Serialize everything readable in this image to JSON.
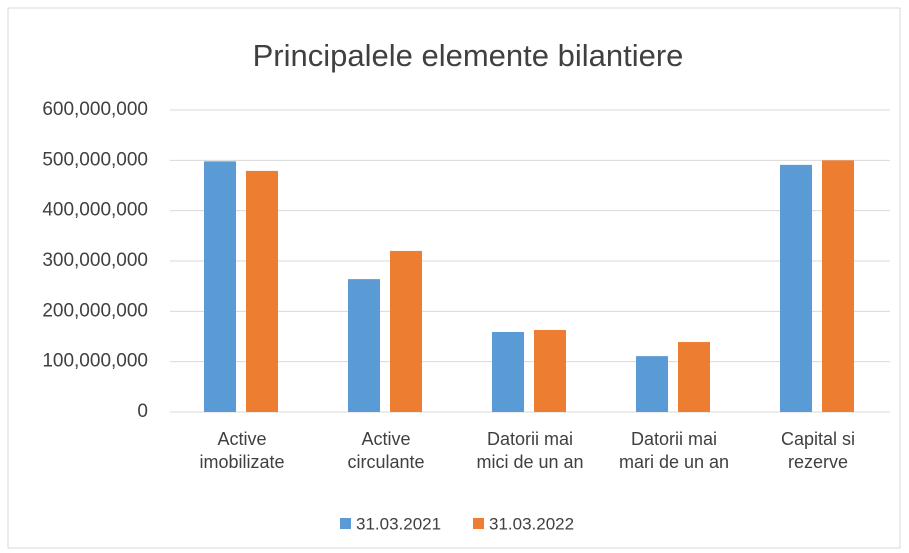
{
  "chart_data": {
    "type": "bar",
    "title": "Principalele elemente bilantiere",
    "categories": [
      "Active\nimobilizate",
      "Active\ncirculante",
      "Datorii mai\nmici de un an",
      "Datorii mai\nmari de un an",
      "Capital si\nrezerve"
    ],
    "series": [
      {
        "name": "31.03.2021",
        "color": "#5b9bd5",
        "values": [
          498000000,
          264000000,
          159000000,
          111000000,
          491000000
        ]
      },
      {
        "name": "31.03.2022",
        "color": "#ed7d31",
        "values": [
          479000000,
          320000000,
          163000000,
          139000000,
          500000000
        ]
      }
    ],
    "ylim": [
      0,
      600000000
    ],
    "yticks": [
      0,
      {
        "value": 100000000,
        "label": "100,000,000"
      },
      {
        "value": 200000000,
        "label": "200,000,000"
      },
      {
        "value": 300000000,
        "label": "300,000,000"
      },
      {
        "value": 400000000,
        "label": "400,000,000"
      },
      {
        "value": 500000000,
        "label": "500,000,000"
      },
      {
        "value": 600000000,
        "label": "600,000,000"
      }
    ],
    "grid": true,
    "legend": "bottom"
  }
}
